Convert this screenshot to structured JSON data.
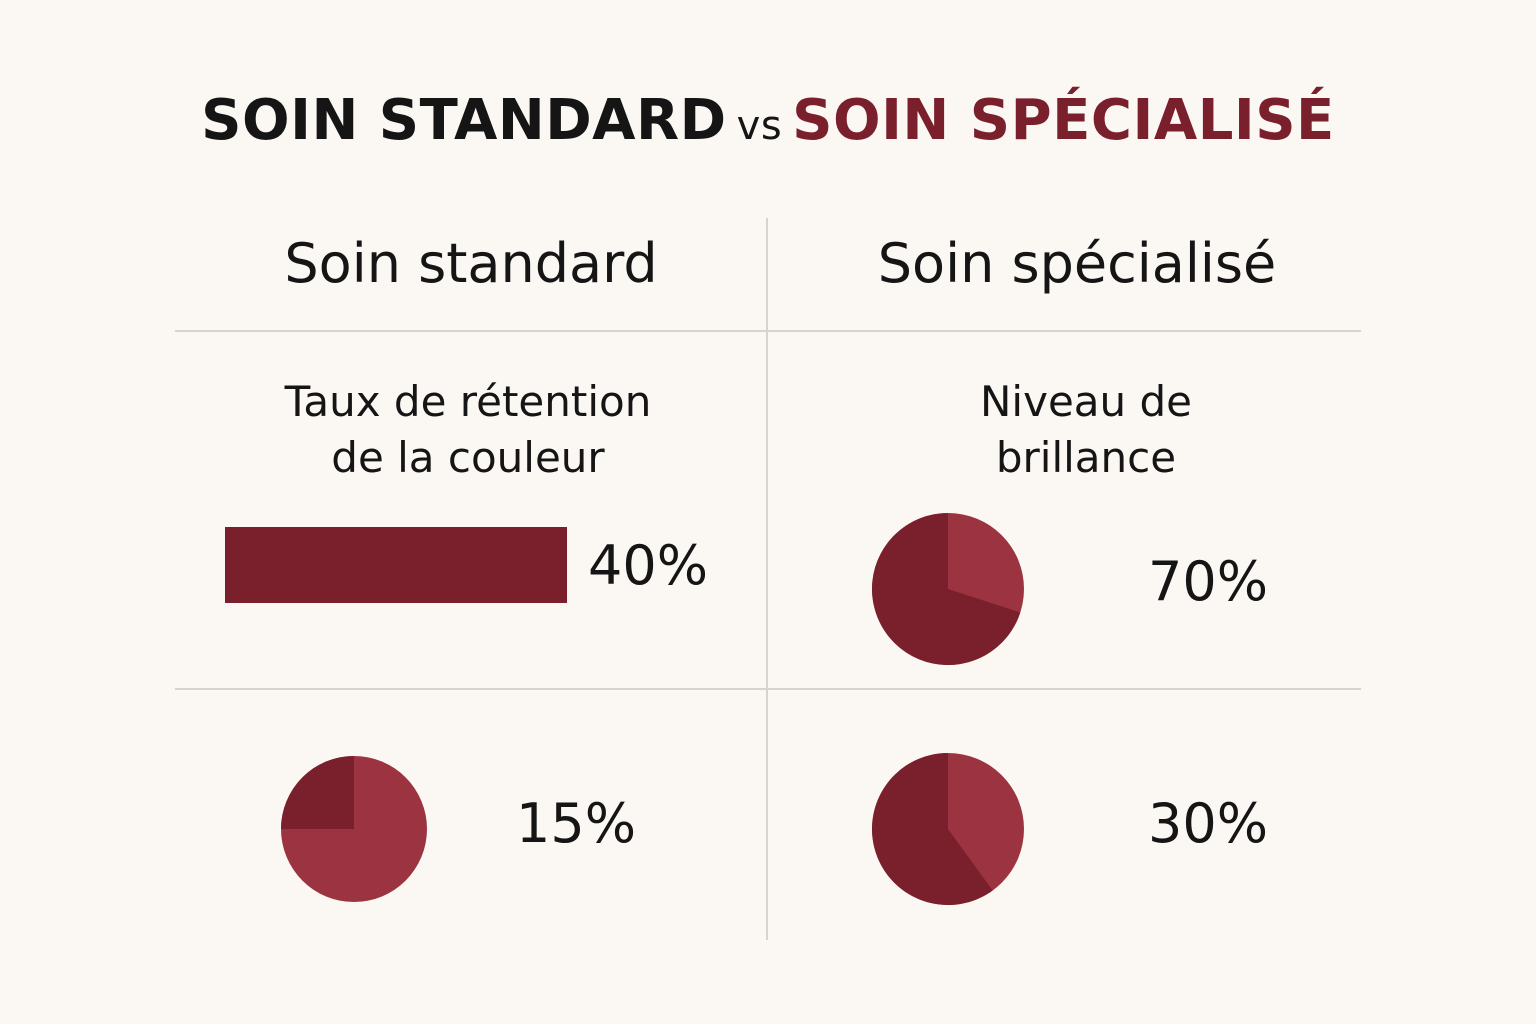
{
  "title": {
    "part1": "SOIN STANDARD",
    "vs": "vs",
    "part2": "SOIN SPÉCIALISÉ"
  },
  "columns": {
    "left": "Soin standard",
    "right": "Soin spécialisé"
  },
  "colors": {
    "dark": "#7a1f2c",
    "light": "#9b3440",
    "background": "#fbf8f4",
    "divider": "#d7d4d0"
  },
  "chart_data": [
    {
      "type": "bar",
      "title": "Taux de rétention\nde la couleur",
      "value": 40,
      "label": "40%",
      "ylim": [
        0,
        100
      ]
    },
    {
      "type": "pie",
      "title": "Niveau de\nbrillance",
      "value": 70,
      "label": "70%"
    },
    {
      "type": "pie",
      "title": "",
      "value": 15,
      "label": "15%"
    },
    {
      "type": "pie",
      "title": "",
      "value": 30,
      "label": "30%"
    }
  ]
}
